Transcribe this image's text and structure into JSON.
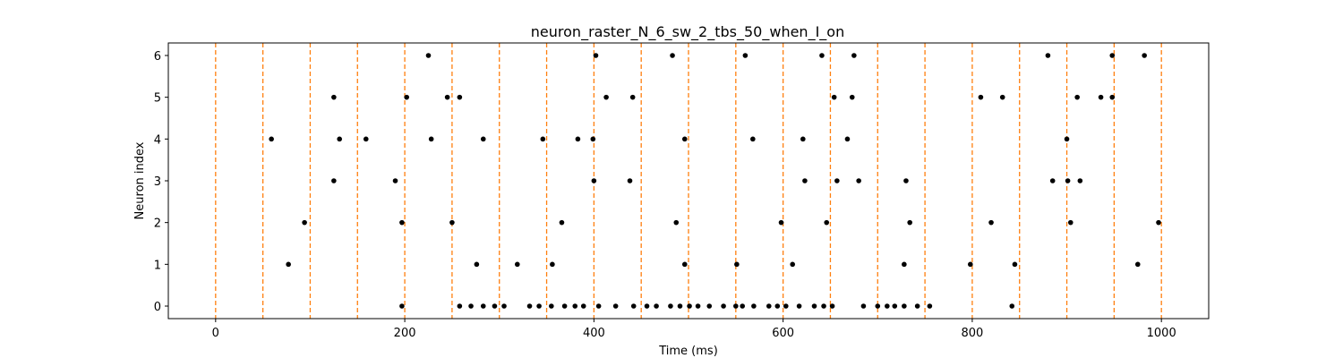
{
  "chart_data": {
    "type": "scatter",
    "title": "neuron_raster_N_6_sw_2_tbs_50_when_I_on",
    "xlabel": "Time (ms)",
    "ylabel": "Neuron index",
    "xlim": [
      -50,
      1050
    ],
    "ylim": [
      -0.3,
      6.3
    ],
    "xticks": [
      0,
      200,
      400,
      600,
      800,
      1000
    ],
    "yticks": [
      0,
      1,
      2,
      3,
      4,
      5,
      6
    ],
    "marker_color": "#000000",
    "vline_color": "#ff7f0e",
    "vlines": [
      0,
      50,
      100,
      150,
      200,
      250,
      300,
      350,
      400,
      450,
      500,
      550,
      600,
      650,
      700,
      750,
      800,
      850,
      900,
      950,
      1000
    ],
    "series": [
      {
        "name": "neuron 0",
        "y": 0,
        "x": [
          197,
          258,
          270,
          283,
          295,
          305,
          332,
          342,
          355,
          369,
          380,
          389,
          405,
          423,
          442,
          456,
          466,
          481,
          491,
          501,
          510,
          522,
          537,
          550,
          557,
          569,
          585,
          594,
          603,
          617,
          633,
          643,
          652,
          685,
          700,
          710,
          718,
          728,
          742,
          755,
          842
        ]
      },
      {
        "name": "neuron 1",
        "y": 1,
        "x": [
          77,
          276,
          319,
          356,
          496,
          551,
          610,
          728,
          798,
          845,
          975
        ]
      },
      {
        "name": "neuron 2",
        "y": 2,
        "x": [
          94,
          197,
          250,
          366,
          487,
          598,
          646,
          734,
          820,
          904,
          997
        ]
      },
      {
        "name": "neuron 3",
        "y": 3,
        "x": [
          125,
          190,
          400,
          438,
          623,
          657,
          680,
          730,
          885,
          901,
          914
        ]
      },
      {
        "name": "neuron 4",
        "y": 4,
        "x": [
          59,
          131,
          159,
          228,
          283,
          346,
          383,
          399,
          496,
          568,
          621,
          668,
          900
        ]
      },
      {
        "name": "neuron 5",
        "y": 5,
        "x": [
          125,
          202,
          245,
          258,
          413,
          441,
          654,
          673,
          809,
          832,
          911,
          936,
          948
        ]
      },
      {
        "name": "neuron 6",
        "y": 6,
        "x": [
          225,
          402,
          483,
          560,
          641,
          675,
          880,
          948,
          982
        ]
      }
    ]
  }
}
